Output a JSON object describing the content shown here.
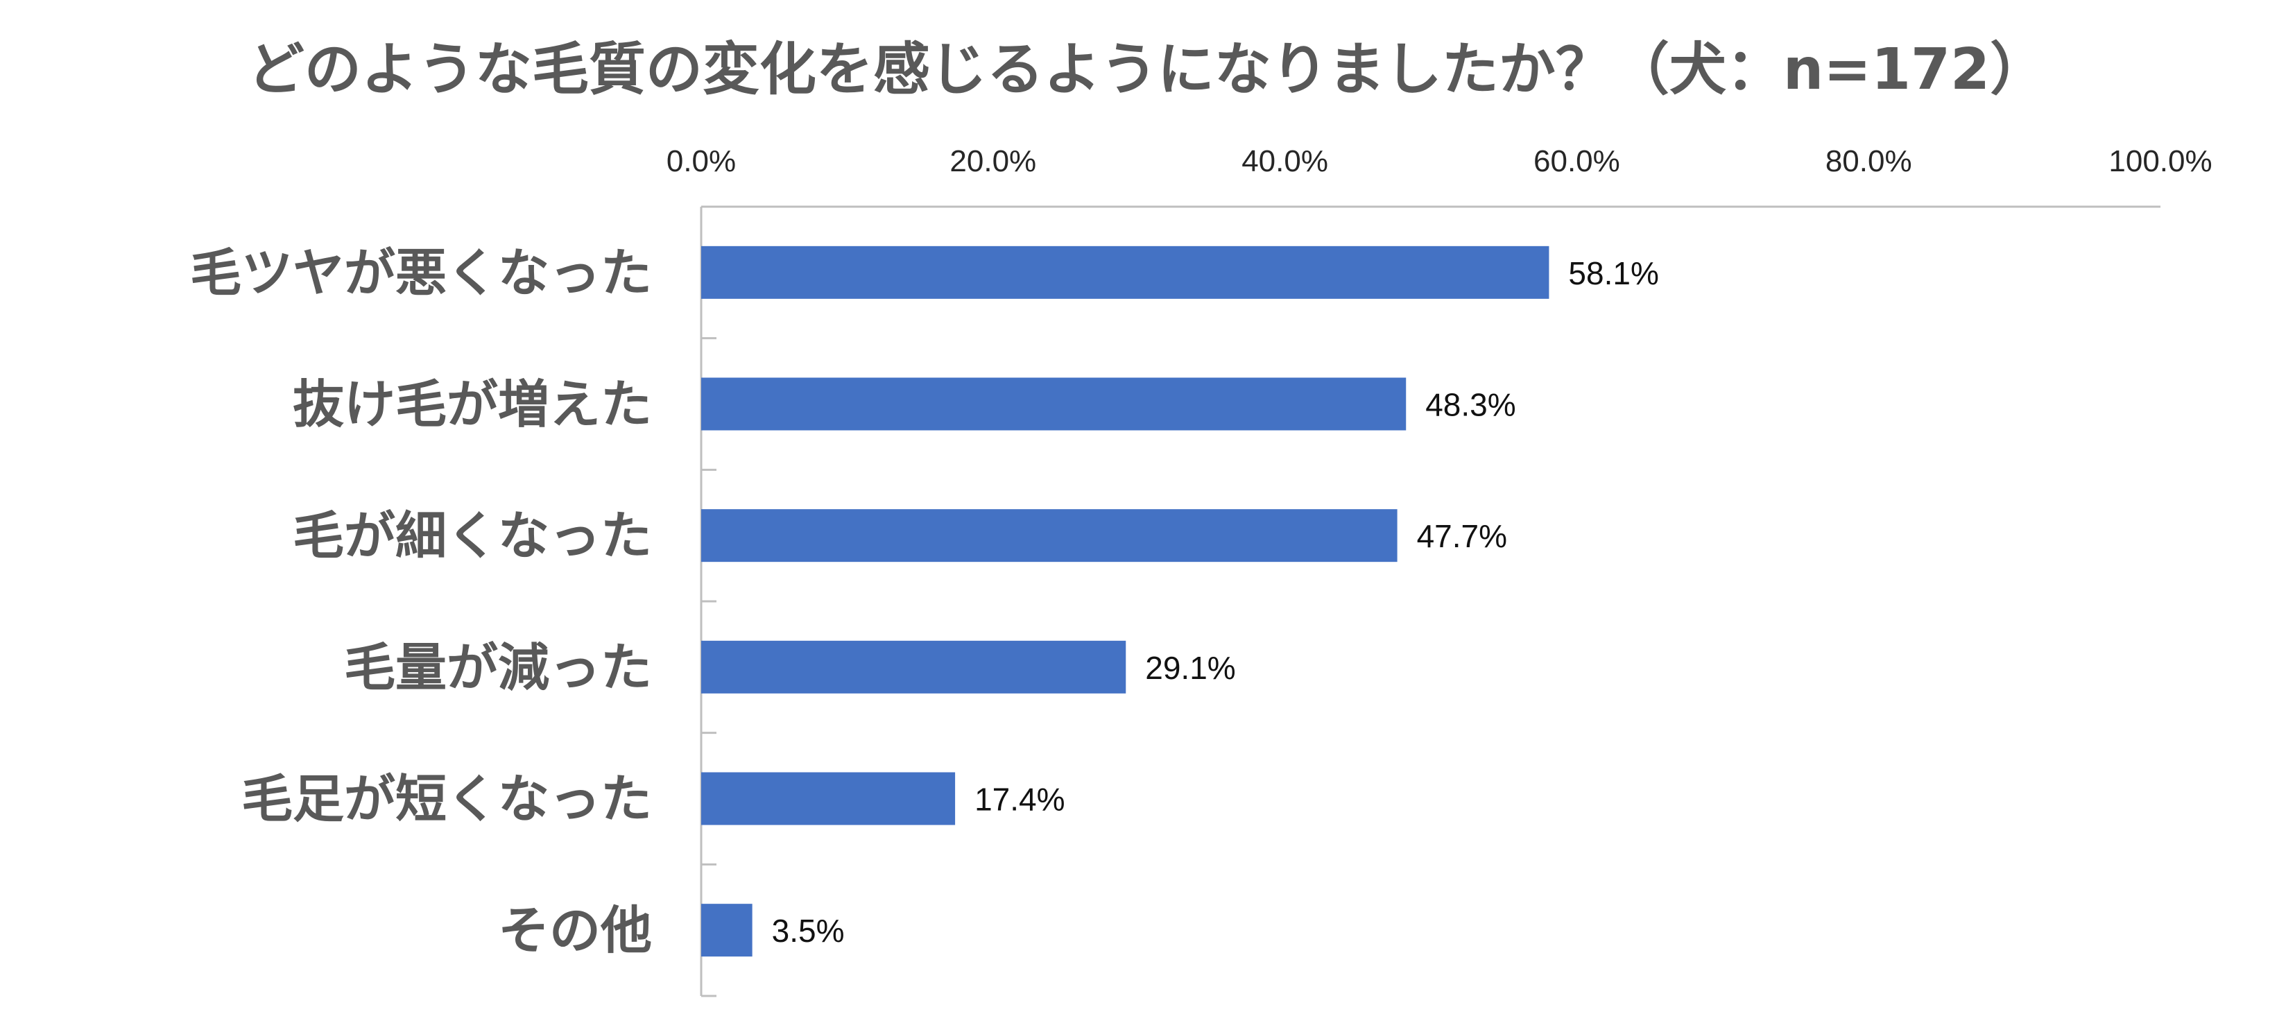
{
  "chart_data": {
    "type": "bar",
    "orientation": "horizontal",
    "title": "どのような毛質の変化を感じるようになりましたか？（犬：n=172）",
    "categories": [
      "毛ツヤが悪くなった",
      "抜け毛が増えた",
      "毛が細くなった",
      "毛量が減った",
      "毛足が短くなった",
      "その他"
    ],
    "values": [
      58.1,
      48.3,
      47.7,
      29.1,
      17.4,
      3.5
    ],
    "data_labels": [
      "58.1%",
      "48.3%",
      "47.7%",
      "29.1%",
      "17.4%",
      "3.5%"
    ],
    "x_ticks": [
      "0.0%",
      "20.0%",
      "40.0%",
      "60.0%",
      "80.0%",
      "100.0%"
    ],
    "xlim": [
      0,
      100
    ],
    "xlabel": "",
    "ylabel": "",
    "grid": false,
    "legend": "none",
    "bar_color": "#4472C4"
  }
}
